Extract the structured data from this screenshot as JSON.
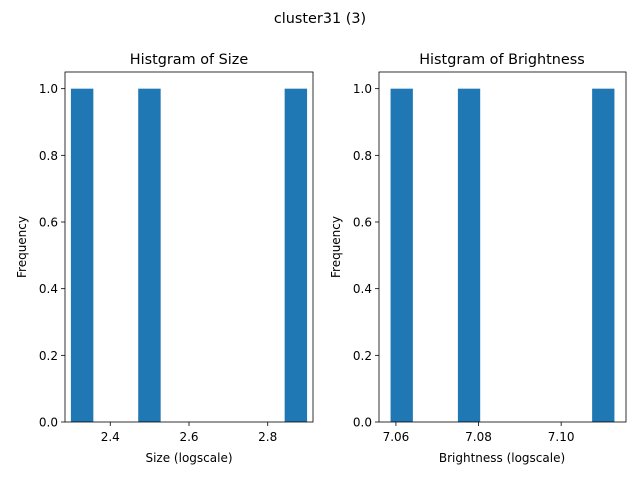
{
  "figure": {
    "suptitle": "cluster31 (3)"
  },
  "chart_data": [
    {
      "type": "bar",
      "title": "Histgram of Size",
      "xlabel": "Size (logscale)",
      "ylabel": "Frequency",
      "xlim": [
        2.285,
        2.915
      ],
      "ylim": [
        0,
        1.05
      ],
      "xticks": [
        2.4,
        2.6,
        2.8
      ],
      "xtick_labels": [
        "2.4",
        "2.6",
        "2.8"
      ],
      "yticks": [
        0,
        0.2,
        0.4,
        0.6,
        0.8,
        1.0
      ],
      "ytick_labels": [
        "0.0",
        "0.2",
        "0.4",
        "0.6",
        "0.8",
        "1.0"
      ],
      "bars": [
        {
          "x0": 2.3,
          "x1": 2.357,
          "value": 1
        },
        {
          "x0": 2.471,
          "x1": 2.528,
          "value": 1
        },
        {
          "x0": 2.843,
          "x1": 2.9,
          "value": 1
        }
      ],
      "color": "#1f77b4"
    },
    {
      "type": "bar",
      "title": "Histgram of Brightness",
      "xlabel": "Brightness (logscale)",
      "ylabel": "Frequency",
      "xlim": [
        7.0559,
        7.1157
      ],
      "ylim": [
        0,
        1.05
      ],
      "xticks": [
        7.06,
        7.08,
        7.1
      ],
      "xtick_labels": [
        "7.06",
        "7.08",
        "7.10"
      ],
      "yticks": [
        0,
        0.2,
        0.4,
        0.6,
        0.8,
        1.0
      ],
      "ytick_labels": [
        "0.0",
        "0.2",
        "0.4",
        "0.6",
        "0.8",
        "1.0"
      ],
      "bars": [
        {
          "x0": 7.0587,
          "x1": 7.0641,
          "value": 1
        },
        {
          "x0": 7.075,
          "x1": 7.0804,
          "value": 1
        },
        {
          "x0": 7.1075,
          "x1": 7.1129,
          "value": 1
        }
      ],
      "color": "#1f77b4"
    }
  ]
}
